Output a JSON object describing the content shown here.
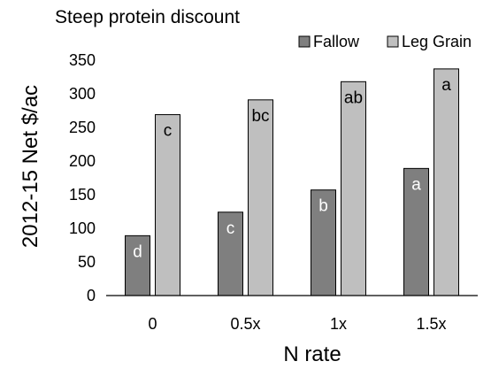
{
  "chart_data": {
    "type": "bar",
    "title": "Steep protein discount",
    "xlabel": "N rate",
    "ylabel": "2012-15 Net $/ac",
    "categories": [
      "0",
      "0.5x",
      "1x",
      "1.5x"
    ],
    "ylim": [
      0,
      350
    ],
    "yticks": [
      0,
      50,
      100,
      150,
      200,
      250,
      300,
      350
    ],
    "grid": false,
    "legend_position": "top-right",
    "series": [
      {
        "name": "Fallow",
        "color": "#7f7f7f",
        "values": [
          89,
          124,
          157,
          189
        ],
        "labels": [
          "d",
          "c",
          "b",
          "a"
        ]
      },
      {
        "name": "Leg Grain",
        "color": "#bfbfbf",
        "values": [
          269,
          291,
          318,
          337
        ],
        "labels": [
          "c",
          "bc",
          "ab",
          "a"
        ]
      }
    ]
  }
}
